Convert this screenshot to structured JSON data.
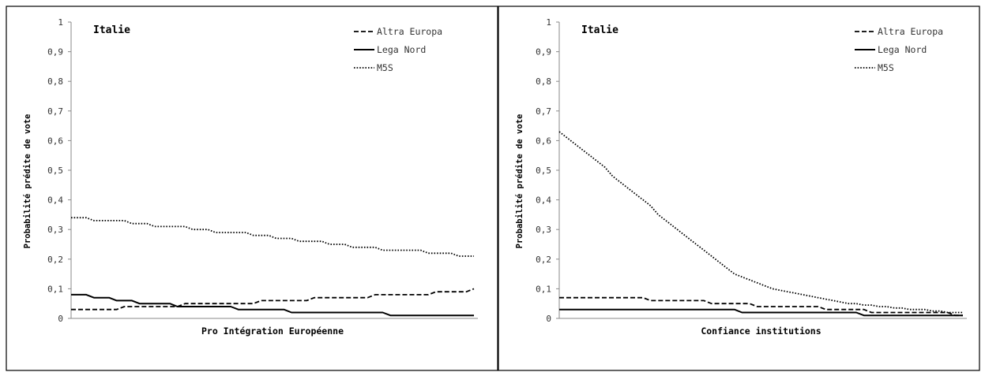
{
  "chart_data": [
    {
      "type": "line",
      "title": "Italie",
      "xlabel": "Pro Intégration Européenne",
      "ylabel": "Probabilité prédite de vote",
      "ylim": [
        0,
        1
      ],
      "yticks": [
        "0",
        "0,1",
        "0,2",
        "0,3",
        "0,4",
        "0,5",
        "0,6",
        "0,7",
        "0,8",
        "0,9",
        "1"
      ],
      "grid": false,
      "legend_position": "top-right",
      "x": [
        1,
        2,
        3,
        4,
        5,
        6,
        7,
        8,
        9,
        10,
        11,
        12,
        13,
        14,
        15,
        16,
        17,
        18,
        19,
        20,
        21,
        22,
        23,
        24,
        25,
        26,
        27,
        28,
        29,
        30,
        31,
        32,
        33,
        34,
        35,
        36,
        37,
        38,
        39,
        40,
        41,
        42,
        43,
        44,
        45,
        46,
        47,
        48,
        49,
        50,
        51,
        52,
        53,
        54
      ],
      "series": [
        {
          "name": "Altra Europa",
          "style": "dashed",
          "values": [
            0.03,
            0.03,
            0.03,
            0.03,
            0.03,
            0.03,
            0.03,
            0.04,
            0.04,
            0.04,
            0.04,
            0.04,
            0.04,
            0.04,
            0.04,
            0.05,
            0.05,
            0.05,
            0.05,
            0.05,
            0.05,
            0.05,
            0.05,
            0.05,
            0.05,
            0.06,
            0.06,
            0.06,
            0.06,
            0.06,
            0.06,
            0.06,
            0.07,
            0.07,
            0.07,
            0.07,
            0.07,
            0.07,
            0.07,
            0.07,
            0.08,
            0.08,
            0.08,
            0.08,
            0.08,
            0.08,
            0.08,
            0.08,
            0.09,
            0.09,
            0.09,
            0.09,
            0.09,
            0.1
          ]
        },
        {
          "name": "Lega Nord",
          "style": "solid",
          "values": [
            0.08,
            0.08,
            0.08,
            0.07,
            0.07,
            0.07,
            0.06,
            0.06,
            0.06,
            0.05,
            0.05,
            0.05,
            0.05,
            0.05,
            0.04,
            0.04,
            0.04,
            0.04,
            0.04,
            0.04,
            0.04,
            0.04,
            0.03,
            0.03,
            0.03,
            0.03,
            0.03,
            0.03,
            0.03,
            0.02,
            0.02,
            0.02,
            0.02,
            0.02,
            0.02,
            0.02,
            0.02,
            0.02,
            0.02,
            0.02,
            0.02,
            0.02,
            0.01,
            0.01,
            0.01,
            0.01,
            0.01,
            0.01,
            0.01,
            0.01,
            0.01,
            0.01,
            0.01,
            0.01
          ]
        },
        {
          "name": "M5S",
          "style": "dotted",
          "values": [
            0.34,
            0.34,
            0.34,
            0.33,
            0.33,
            0.33,
            0.33,
            0.33,
            0.32,
            0.32,
            0.32,
            0.31,
            0.31,
            0.31,
            0.31,
            0.31,
            0.3,
            0.3,
            0.3,
            0.29,
            0.29,
            0.29,
            0.29,
            0.29,
            0.28,
            0.28,
            0.28,
            0.27,
            0.27,
            0.27,
            0.26,
            0.26,
            0.26,
            0.26,
            0.25,
            0.25,
            0.25,
            0.24,
            0.24,
            0.24,
            0.24,
            0.23,
            0.23,
            0.23,
            0.23,
            0.23,
            0.23,
            0.22,
            0.22,
            0.22,
            0.22,
            0.21,
            0.21,
            0.21
          ]
        }
      ]
    },
    {
      "type": "line",
      "title": "Italie",
      "xlabel": "Confiance institutions",
      "ylabel": "Probabilité prédite de vote",
      "ylim": [
        0,
        1
      ],
      "yticks": [
        "0",
        "0,1",
        "0,2",
        "0,3",
        "0,4",
        "0,5",
        "0,6",
        "0,7",
        "0,8",
        "0,9",
        "1"
      ],
      "grid": false,
      "legend_position": "top-right",
      "x": [
        1,
        2,
        3,
        4,
        5,
        6,
        7,
        8,
        9,
        10,
        11,
        12,
        13,
        14,
        15,
        16,
        17,
        18,
        19,
        20,
        21,
        22,
        23,
        24,
        25,
        26,
        27,
        28,
        29,
        30,
        31,
        32,
        33,
        34,
        35,
        36,
        37,
        38,
        39,
        40,
        41,
        42,
        43,
        44,
        45,
        46,
        47,
        48,
        49,
        50,
        51,
        52,
        53,
        54
      ],
      "series": [
        {
          "name": "Altra Europa",
          "style": "dashed",
          "values": [
            0.07,
            0.07,
            0.07,
            0.07,
            0.07,
            0.07,
            0.07,
            0.07,
            0.07,
            0.07,
            0.07,
            0.07,
            0.06,
            0.06,
            0.06,
            0.06,
            0.06,
            0.06,
            0.06,
            0.06,
            0.05,
            0.05,
            0.05,
            0.05,
            0.05,
            0.05,
            0.04,
            0.04,
            0.04,
            0.04,
            0.04,
            0.04,
            0.04,
            0.04,
            0.04,
            0.03,
            0.03,
            0.03,
            0.03,
            0.03,
            0.03,
            0.02,
            0.02,
            0.02,
            0.02,
            0.02,
            0.02,
            0.02,
            0.02,
            0.02,
            0.02,
            0.02,
            0.01,
            0.01
          ]
        },
        {
          "name": "Lega Nord",
          "style": "solid",
          "values": [
            0.03,
            0.03,
            0.03,
            0.03,
            0.03,
            0.03,
            0.03,
            0.03,
            0.03,
            0.03,
            0.03,
            0.03,
            0.03,
            0.03,
            0.03,
            0.03,
            0.03,
            0.03,
            0.03,
            0.03,
            0.03,
            0.03,
            0.03,
            0.03,
            0.02,
            0.02,
            0.02,
            0.02,
            0.02,
            0.02,
            0.02,
            0.02,
            0.02,
            0.02,
            0.02,
            0.02,
            0.02,
            0.02,
            0.02,
            0.02,
            0.01,
            0.01,
            0.01,
            0.01,
            0.01,
            0.01,
            0.01,
            0.01,
            0.01,
            0.01,
            0.01,
            0.01,
            0.01,
            0.01
          ]
        },
        {
          "name": "M5S",
          "style": "dotted",
          "values": [
            0.63,
            0.61,
            0.59,
            0.57,
            0.55,
            0.53,
            0.51,
            0.48,
            0.46,
            0.44,
            0.42,
            0.4,
            0.38,
            0.35,
            0.33,
            0.31,
            0.29,
            0.27,
            0.25,
            0.23,
            0.21,
            0.19,
            0.17,
            0.15,
            0.14,
            0.13,
            0.12,
            0.11,
            0.1,
            0.095,
            0.09,
            0.085,
            0.08,
            0.075,
            0.07,
            0.065,
            0.06,
            0.055,
            0.05,
            0.05,
            0.045,
            0.045,
            0.04,
            0.04,
            0.035,
            0.035,
            0.03,
            0.03,
            0.03,
            0.025,
            0.025,
            0.02,
            0.02,
            0.02
          ]
        }
      ]
    }
  ]
}
